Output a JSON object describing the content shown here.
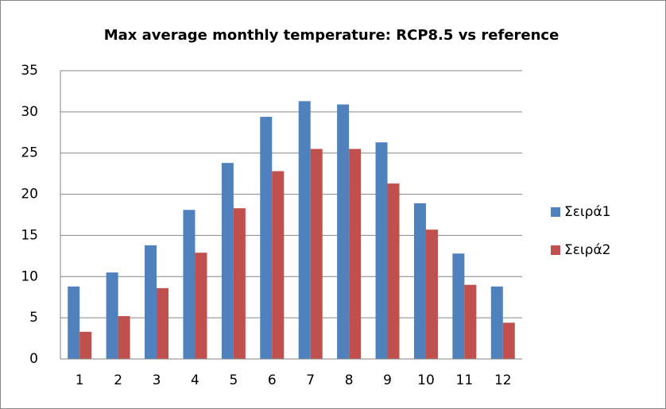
{
  "chart_data": {
    "type": "bar",
    "title": "Max average monthly temperature: RCP8.5 vs reference",
    "categories": [
      "1",
      "2",
      "3",
      "4",
      "5",
      "6",
      "7",
      "8",
      "9",
      "10",
      "11",
      "12"
    ],
    "series": [
      {
        "name": "Σειρά1",
        "color": "#4f81bd",
        "values": [
          8.8,
          10.5,
          13.8,
          18.1,
          23.8,
          29.4,
          31.3,
          30.9,
          26.3,
          18.9,
          12.8,
          8.8
        ]
      },
      {
        "name": "Σειρά2",
        "color": "#c0504d",
        "values": [
          3.3,
          5.2,
          8.6,
          12.9,
          18.3,
          22.8,
          25.5,
          25.5,
          21.3,
          15.7,
          9.0,
          4.4
        ]
      }
    ],
    "ylim": [
      0,
      35
    ],
    "yticks": [
      0,
      5,
      10,
      15,
      20,
      25,
      30,
      35
    ],
    "grid": true,
    "legend": "right"
  }
}
